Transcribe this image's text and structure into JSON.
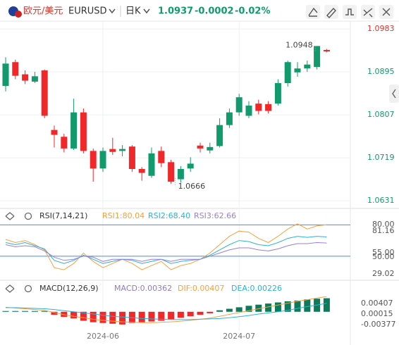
{
  "header": {
    "symbol_cn": "欧元/美元",
    "symbol": "EURUSD",
    "period": "日K",
    "price": "1.0937",
    "change": "-0.0002",
    "change_pct": "-0.02%"
  },
  "chart_data": [
    {
      "type": "candlestick",
      "up_color": "#139a6c",
      "down_color": "#f0282a",
      "grid": true,
      "open": [
        1.0866,
        1.0915,
        1.089,
        1.0875,
        1.0898,
        1.0776,
        1.0762,
        1.0738,
        1.0812,
        1.0733,
        1.0697,
        1.0737,
        1.0733,
        1.0742,
        1.0696,
        1.0682,
        1.0733,
        1.071,
        1.0675,
        1.0697,
        1.0744,
        1.0734,
        1.0743,
        1.0786,
        1.0812,
        1.0805,
        1.083,
        1.0829,
        1.083,
        1.0872,
        1.0894,
        1.0902,
        1.0905,
        1.094
      ],
      "high": [
        1.0925,
        1.092,
        1.0898,
        1.0895,
        1.09,
        1.0785,
        1.0768,
        1.084,
        1.082,
        1.0738,
        1.074,
        1.076,
        1.0745,
        1.0745,
        1.07,
        1.074,
        1.0742,
        1.0715,
        1.0702,
        1.072,
        1.075,
        1.075,
        1.08,
        1.082,
        1.085,
        1.0835,
        1.0838,
        1.0835,
        1.088,
        1.0918,
        1.0915,
        1.0918,
        1.0948,
        1.0942
      ],
      "low": [
        1.0855,
        1.088,
        1.087,
        1.0872,
        1.08,
        1.074,
        1.073,
        1.0735,
        1.0728,
        1.067,
        1.069,
        1.0725,
        1.0722,
        1.069,
        1.0672,
        1.0678,
        1.07,
        1.0666,
        1.0668,
        1.069,
        1.073,
        1.0728,
        1.074,
        1.078,
        1.0805,
        1.08,
        1.0808,
        1.081,
        1.0826,
        1.0865,
        1.0885,
        1.0895,
        1.09,
        1.0935
      ],
      "close": [
        1.0912,
        1.0887,
        1.0877,
        1.0886,
        1.0805,
        1.0766,
        1.0738,
        1.0812,
        1.0733,
        1.0697,
        1.0733,
        1.0731,
        1.0737,
        1.0696,
        1.0688,
        1.0728,
        1.0708,
        1.067,
        1.0696,
        1.0707,
        1.0738,
        1.0741,
        1.0786,
        1.0812,
        1.0843,
        1.0826,
        1.0815,
        1.0815,
        1.0872,
        1.0915,
        1.0902,
        1.091,
        1.0948,
        1.0937
      ],
      "ylim": [
        1.0621,
        1.0999
      ],
      "yticks": [
        1.0983,
        1.0895,
        1.0807,
        1.0719,
        1.0631
      ],
      "xticks": [
        {
          "value": 10,
          "label": "2024-06"
        },
        {
          "value": 24,
          "label": "2024-07"
        }
      ],
      "max_label": 1.0948,
      "min_label": 1.0666
    },
    {
      "type": "line",
      "title": "RSI(7,14,21)",
      "ylim": [
        29,
        91
      ],
      "hlines": [
        80,
        50
      ],
      "hline_color": "#3d8fe0",
      "axis_labels": [
        "80.00",
        "81.16",
        "55.00",
        "50.00",
        "29.02"
      ],
      "series": [
        {
          "name": "RSI1:80.04",
          "color": "#f5a142",
          "values": [
            66,
            63,
            65,
            61,
            56,
            39,
            37,
            43,
            53,
            45,
            39,
            43,
            47,
            43,
            37,
            41,
            45,
            37,
            41,
            43,
            47,
            53,
            61,
            69,
            74,
            73,
            67,
            63,
            69,
            76,
            81,
            76,
            79,
            80.04
          ]
        },
        {
          "name": "RSI2:68.40",
          "color": "#2bb3d6",
          "values": [
            63,
            61,
            63,
            60,
            57,
            46,
            43,
            46,
            51,
            47,
            43,
            45,
            47,
            46,
            43,
            45,
            47,
            43,
            45,
            46,
            47,
            51,
            56,
            61,
            65,
            64,
            61,
            60,
            63,
            67,
            69,
            68,
            69,
            68.4
          ]
        },
        {
          "name": "RSI3:62.66",
          "color": "#9b7fd6",
          "values": [
            61,
            59,
            60,
            59,
            55,
            49,
            46,
            47,
            50,
            49,
            45,
            47,
            47,
            47,
            45,
            47,
            47,
            45,
            47,
            47,
            47,
            50,
            53,
            56,
            58,
            58,
            56,
            55,
            57,
            60,
            62,
            62,
            63,
            62.66
          ]
        }
      ]
    },
    {
      "type": "macd",
      "title": "MACD(12,26,9)",
      "ylim": [
        -0.0055,
        0.0058
      ],
      "up_color": "#0d7a5a",
      "down_color": "#f0282a",
      "axis_labels": [
        "0.00407",
        "0.00015",
        "-0.00377"
      ],
      "histogram": {
        "name": "MACD:0.00362",
        "color": "#8e7cc3",
        "values": [
          0.0002,
          0.0002,
          0.0002,
          0.0002,
          0.0002,
          -0.0008,
          -0.0014,
          -0.0018,
          -0.0024,
          -0.0028,
          -0.003,
          -0.0032,
          -0.0034,
          -0.003,
          -0.0028,
          -0.0026,
          -0.0024,
          -0.002,
          -0.0016,
          -0.0012,
          -0.0008,
          -0.0004,
          0.0004,
          0.0008,
          0.0012,
          0.0016,
          0.0019,
          0.0022,
          0.0025,
          0.0028,
          0.003,
          0.0033,
          0.0035,
          0.00362
        ]
      },
      "series": [
        {
          "name": "DIF:0.00407",
          "color": "#f5a142",
          "values": [
            0.0012,
            0.001,
            0.0008,
            0.0006,
            0.0004,
            -0.0002,
            -0.0008,
            -0.0012,
            -0.0016,
            -0.002,
            -0.0023,
            -0.0025,
            -0.0027,
            -0.0028,
            -0.0029,
            -0.0029,
            -0.0028,
            -0.0027,
            -0.0025,
            -0.0023,
            -0.002,
            -0.0017,
            -0.0012,
            -0.0007,
            -0.0002,
            0.0003,
            0.0008,
            0.0013,
            0.0018,
            0.0023,
            0.0028,
            0.0032,
            0.0037,
            0.00407
          ]
        },
        {
          "name": "DEA:0.00226",
          "color": "#2bb3d6",
          "values": [
            0.0011,
            0.0011,
            0.001,
            0.0009,
            0.0008,
            0.0006,
            0.0003,
            0,
            -0.0003,
            -0.0006,
            -0.0009,
            -0.0012,
            -0.0014,
            -0.0016,
            -0.0018,
            -0.0019,
            -0.002,
            -0.0021,
            -0.0021,
            -0.0021,
            -0.002,
            -0.0019,
            -0.0018,
            -0.0016,
            -0.0013,
            -0.001,
            -0.0006,
            -0.0003,
            0,
            0.0004,
            0.0009,
            0.0014,
            0.0018,
            0.00226
          ]
        }
      ]
    }
  ]
}
